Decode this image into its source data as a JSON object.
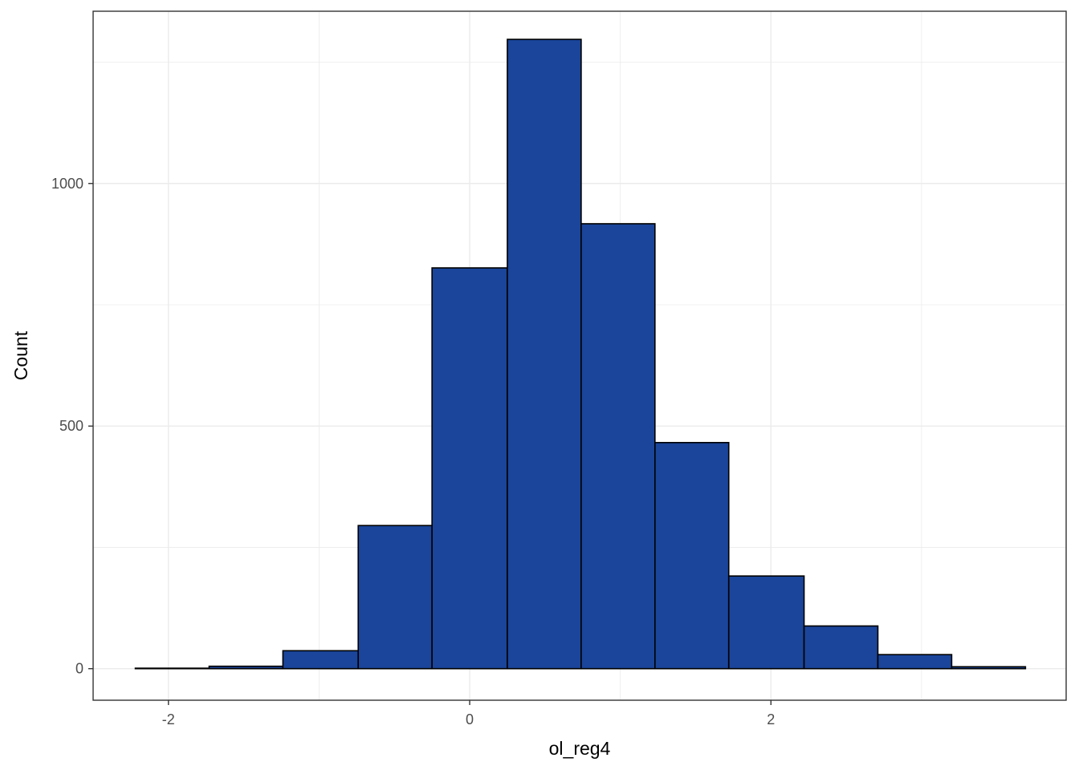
{
  "chart_data": {
    "type": "bar",
    "xlabel": "ol_reg4",
    "ylabel": "Count",
    "bin_edges": [
      -2.22,
      -1.73,
      -1.24,
      -0.74,
      -0.25,
      0.25,
      0.74,
      1.23,
      1.72,
      2.22,
      2.71,
      3.2,
      3.69
    ],
    "values": [
      1,
      5,
      37,
      295,
      826,
      1297,
      917,
      466,
      191,
      88,
      29,
      4
    ],
    "xlim": [
      -2.5,
      3.96
    ],
    "ylim": [
      -65,
      1355
    ],
    "xticks": [
      -2,
      0,
      2
    ],
    "xtick_labels": [
      "-2",
      "0",
      "2"
    ],
    "yticks": [
      0,
      500,
      1000
    ],
    "ytick_labels": [
      "0",
      "500",
      "1000"
    ],
    "y_minor_ticks": [
      250,
      750,
      1250
    ],
    "x_minor_ticks": [
      -1,
      1,
      3
    ],
    "grid": true,
    "colors": {
      "bar_fill": "#1a459a",
      "bar_stroke": "#000000",
      "grid": "#ebebeb",
      "panel_border": "#333333"
    }
  }
}
